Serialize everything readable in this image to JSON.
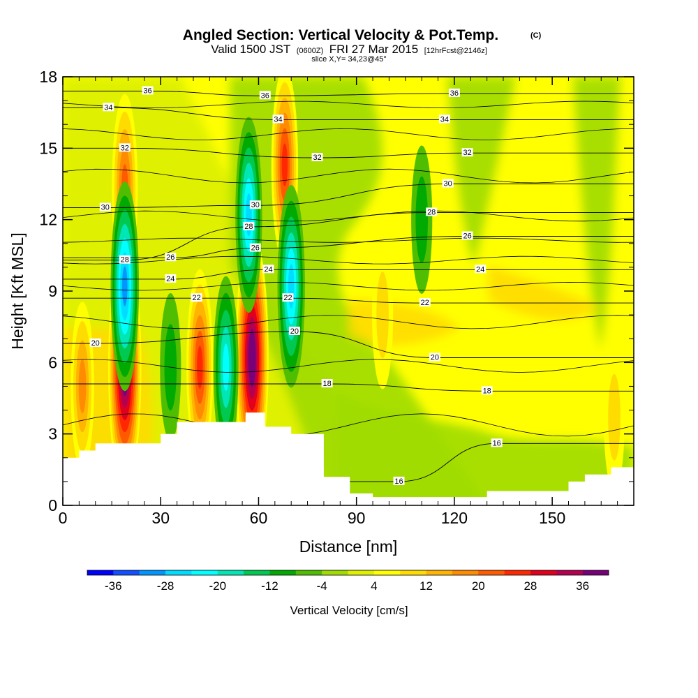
{
  "title": {
    "main": "Angled Section: Vertical Velocity & Pot.Temp.",
    "copyright": "(C)",
    "valid_prefix": "Valid 1500 JST",
    "utc": "(0600Z)",
    "valid_date": "FRI 27 Mar 2015",
    "forecast": "[12hrFcst@2146z]",
    "slice": "slice X,Y= 34,23@45°"
  },
  "chart_data": {
    "type": "heatmap",
    "title": "Angled Section: Vertical Velocity & Pot.Temp.",
    "xlabel": "Distance [nm]",
    "ylabel": "Height [Kft MSL]",
    "xlim": [
      0,
      175
    ],
    "ylim": [
      0,
      18
    ],
    "x_ticks": [
      0,
      30,
      60,
      90,
      120,
      150
    ],
    "y_ticks": [
      0,
      3,
      6,
      9,
      12,
      15,
      18
    ],
    "x_tick_labels": [
      "0",
      "30",
      "60",
      "90",
      "120",
      "150"
    ],
    "y_tick_labels": [
      "0",
      "3",
      "6",
      "9",
      "12",
      "15",
      "18"
    ],
    "colorbar": {
      "title": "Vertical Velocity [cm/s]",
      "min": -40,
      "max": 40,
      "step": 4,
      "tick_values": [
        -36,
        -28,
        -20,
        -12,
        -4,
        4,
        12,
        20,
        28,
        36
      ],
      "tick_labels": [
        "-36",
        "-28",
        "-20",
        "-12",
        "-4",
        "4",
        "12",
        "20",
        "28",
        "36"
      ],
      "colors": [
        "#0000ff",
        "#1050ff",
        "#0096ff",
        "#00dcff",
        "#00ffff",
        "#00e6b4",
        "#00c850",
        "#00aa00",
        "#50be00",
        "#a0dc00",
        "#dcf000",
        "#ffff00",
        "#ffdc00",
        "#ffb400",
        "#ff8c00",
        "#ff5a00",
        "#ff2800",
        "#e1001e",
        "#b40050",
        "#780078"
      ]
    },
    "terrain": [
      [
        0,
        2.0
      ],
      [
        5,
        2.3
      ],
      [
        10,
        2.6
      ],
      [
        25,
        2.6
      ],
      [
        30,
        3.0
      ],
      [
        35,
        3.5
      ],
      [
        53,
        3.5
      ],
      [
        56,
        3.9
      ],
      [
        62,
        3.3
      ],
      [
        70,
        3.0
      ],
      [
        80,
        1.2
      ],
      [
        88,
        0.5
      ],
      [
        95,
        0.35
      ],
      [
        120,
        0.35
      ],
      [
        130,
        0.6
      ],
      [
        145,
        0.6
      ],
      [
        155,
        1.0
      ],
      [
        160,
        1.3
      ],
      [
        168,
        1.6
      ],
      [
        175,
        1.6
      ]
    ],
    "updraft_cores": [
      {
        "x": 6,
        "z": 5.0,
        "value": 16
      },
      {
        "x": 19,
        "z": 5.8,
        "value": 40
      },
      {
        "x": 19,
        "z": 13.3,
        "value": 22
      },
      {
        "x": 42,
        "z": 5.8,
        "value": 24
      },
      {
        "x": 58,
        "z": 6.2,
        "value": 40
      },
      {
        "x": 68,
        "z": 14.3,
        "value": 24
      },
      {
        "x": 98,
        "z": 8.0,
        "value": 10
      },
      {
        "x": 169,
        "z": 3.7,
        "value": 10
      }
    ],
    "downdraft_cores": [
      {
        "x": 19,
        "z": 9.2,
        "value": -28
      },
      {
        "x": 33,
        "z": 5.8,
        "value": -10
      },
      {
        "x": 50,
        "z": 5.8,
        "value": -20
      },
      {
        "x": 57,
        "z": 12.2,
        "value": -24
      },
      {
        "x": 70,
        "z": 9.2,
        "value": -26
      },
      {
        "x": 110,
        "z": 12.0,
        "value": -10
      }
    ],
    "theta_contour_labels": [
      {
        "x": 26,
        "z": 17.4,
        "text": "36"
      },
      {
        "x": 62,
        "z": 17.2,
        "text": "36"
      },
      {
        "x": 120,
        "z": 17.3,
        "text": "36"
      },
      {
        "x": 14,
        "z": 16.7,
        "text": "34"
      },
      {
        "x": 66,
        "z": 16.2,
        "text": "34"
      },
      {
        "x": 117,
        "z": 16.2,
        "text": "34"
      },
      {
        "x": 19,
        "z": 15.0,
        "text": "32"
      },
      {
        "x": 78,
        "z": 14.6,
        "text": "32"
      },
      {
        "x": 124,
        "z": 14.8,
        "text": "32"
      },
      {
        "x": 13,
        "z": 12.5,
        "text": "30"
      },
      {
        "x": 59,
        "z": 12.6,
        "text": "30"
      },
      {
        "x": 118,
        "z": 13.5,
        "text": "30"
      },
      {
        "x": 19,
        "z": 10.3,
        "text": "28"
      },
      {
        "x": 57,
        "z": 11.7,
        "text": "28"
      },
      {
        "x": 113,
        "z": 12.3,
        "text": "28"
      },
      {
        "x": 33,
        "z": 10.4,
        "text": "26"
      },
      {
        "x": 59,
        "z": 10.8,
        "text": "26"
      },
      {
        "x": 124,
        "z": 11.3,
        "text": "26"
      },
      {
        "x": 33,
        "z": 9.5,
        "text": "24"
      },
      {
        "x": 63,
        "z": 9.9,
        "text": "24"
      },
      {
        "x": 128,
        "z": 9.9,
        "text": "24"
      },
      {
        "x": 41,
        "z": 8.7,
        "text": "22"
      },
      {
        "x": 69,
        "z": 8.7,
        "text": "22"
      },
      {
        "x": 111,
        "z": 8.5,
        "text": "22"
      },
      {
        "x": 10,
        "z": 6.8,
        "text": "20"
      },
      {
        "x": 71,
        "z": 7.3,
        "text": "20"
      },
      {
        "x": 114,
        "z": 6.2,
        "text": "20"
      },
      {
        "x": 81,
        "z": 5.1,
        "text": "18"
      },
      {
        "x": 130,
        "z": 4.8,
        "text": "18"
      },
      {
        "x": 103,
        "z": 1.0,
        "text": "16"
      },
      {
        "x": 133,
        "z": 2.6,
        "text": "16"
      }
    ]
  }
}
